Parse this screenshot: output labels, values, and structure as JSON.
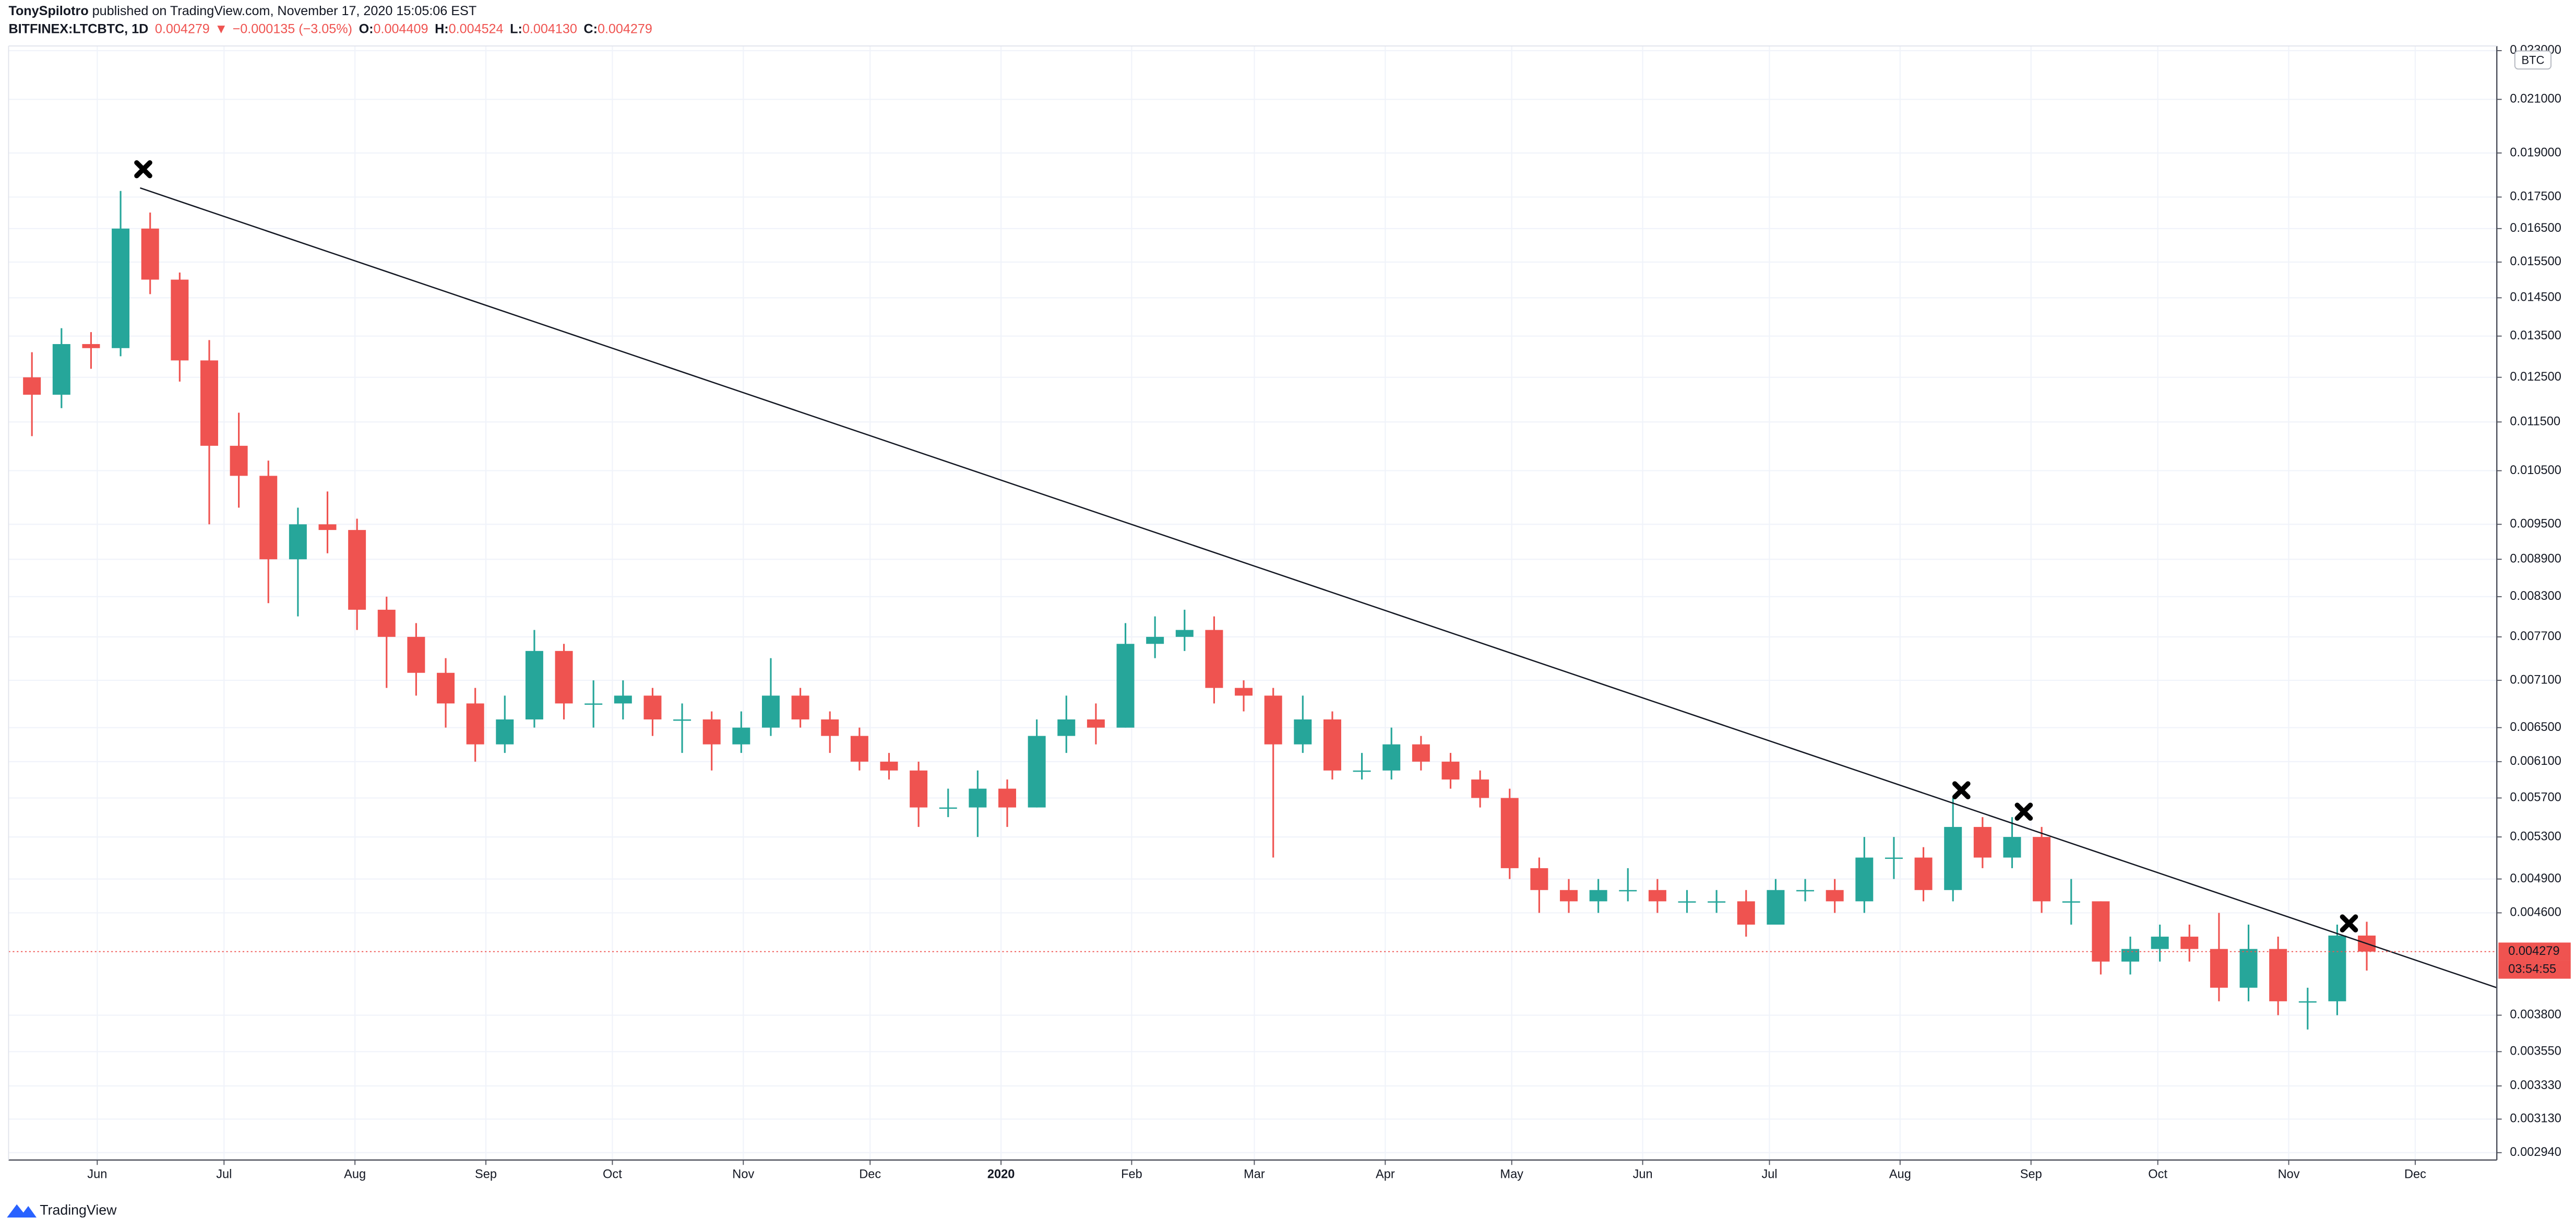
{
  "header": {
    "author": "TonySpilotro",
    "published": " published on TradingView.com, November 17, 2020 15:05:06 EST",
    "symbol": "BITFINEX:LTCBTC, 1D",
    "price": "0.004279",
    "arrow": "▼",
    "change": "−0.000135 (−3.05%)",
    "ohlc": [
      {
        "label": "O:",
        "value": "0.004409"
      },
      {
        "label": "H:",
        "value": "0.004524"
      },
      {
        "label": "L:",
        "value": "0.004130"
      },
      {
        "label": "C:",
        "value": "0.004279"
      }
    ]
  },
  "footer": "TradingView",
  "chart_data": {
    "type": "candlestick",
    "log_scale": true,
    "grid": true,
    "currency": "BTC",
    "countdown": "03:54:55",
    "up_color": "#26a69a",
    "down_color": "#ef5350",
    "categories": [
      null,
      null,
      null,
      null,
      null,
      null,
      null,
      null,
      null,
      null,
      null,
      null,
      null,
      null,
      null,
      null,
      null,
      null,
      null,
      null,
      null,
      null,
      null,
      null,
      null,
      null,
      null,
      null,
      null,
      null,
      null,
      null,
      null,
      null,
      null,
      null,
      null,
      null,
      null,
      null,
      null,
      null,
      null,
      null,
      null,
      null,
      null,
      null,
      null,
      null,
      null,
      null,
      null,
      null,
      null,
      null,
      null,
      null,
      null,
      null,
      null,
      null,
      null,
      null,
      null,
      null,
      null,
      null,
      null,
      null,
      null,
      null,
      null,
      null,
      null,
      null,
      null,
      null,
      null,
      null
    ],
    "open": [
      0.0125,
      0.0121,
      0.0133,
      0.0132,
      0.0165,
      0.015,
      0.0129,
      0.011,
      0.0104,
      0.0089,
      0.0095,
      0.0094,
      0.0081,
      0.0077,
      0.0072,
      0.0068,
      0.0063,
      0.0066,
      0.0075,
      0.0068,
      0.0068,
      0.0069,
      0.0066,
      0.0066,
      0.0063,
      0.0065,
      0.0069,
      0.0066,
      0.0064,
      0.0061,
      0.006,
      0.0056,
      0.0056,
      0.0058,
      0.0056,
      0.0064,
      0.0066,
      0.0065,
      0.0076,
      0.0077,
      0.0078,
      0.007,
      0.0069,
      0.0063,
      0.0066,
      0.006,
      0.006,
      0.0063,
      0.0061,
      0.0059,
      0.0057,
      0.005,
      0.0048,
      0.0047,
      0.0048,
      0.0048,
      0.0047,
      0.0047,
      0.0047,
      0.0045,
      0.0048,
      0.0048,
      0.0047,
      0.0051,
      0.0051,
      0.0048,
      0.0054,
      0.0051,
      0.0053,
      0.0047,
      0.0047,
      0.0042,
      0.0043,
      0.0044,
      0.0043,
      0.004,
      0.0043,
      0.0039,
      0.0039,
      0.004409
    ],
    "high": [
      0.0131,
      0.0137,
      0.0136,
      0.0177,
      0.017,
      0.0152,
      0.0134,
      0.0117,
      0.0107,
      0.0098,
      0.0101,
      0.0096,
      0.0083,
      0.0079,
      0.0074,
      0.007,
      0.0069,
      0.0078,
      0.0076,
      0.0071,
      0.0071,
      0.007,
      0.0068,
      0.0067,
      0.0067,
      0.0074,
      0.007,
      0.0067,
      0.0065,
      0.0062,
      0.0061,
      0.0058,
      0.006,
      0.0059,
      0.0066,
      0.0069,
      0.0068,
      0.0079,
      0.008,
      0.0081,
      0.008,
      0.0071,
      0.007,
      0.0069,
      0.0067,
      0.0062,
      0.0065,
      0.0064,
      0.0062,
      0.006,
      0.0058,
      0.0051,
      0.0049,
      0.0049,
      0.005,
      0.0049,
      0.0048,
      0.0048,
      0.0048,
      0.0049,
      0.0049,
      0.0049,
      0.0053,
      0.0053,
      0.0052,
      0.0057,
      0.0055,
      0.0055,
      0.0054,
      0.0049,
      0.0047,
      0.0044,
      0.0045,
      0.0045,
      0.0046,
      0.0045,
      0.0044,
      0.004,
      0.0045,
      0.004524
    ],
    "low": [
      0.0112,
      0.0118,
      0.0127,
      0.013,
      0.0146,
      0.0124,
      0.0095,
      0.0098,
      0.0082,
      0.008,
      0.009,
      0.0078,
      0.007,
      0.0069,
      0.0065,
      0.0061,
      0.0062,
      0.0065,
      0.0066,
      0.0065,
      0.0066,
      0.0064,
      0.0062,
      0.006,
      0.0062,
      0.0064,
      0.0065,
      0.0062,
      0.006,
      0.0059,
      0.0054,
      0.0055,
      0.0053,
      0.0054,
      0.0056,
      0.0062,
      0.0063,
      0.0065,
      0.0074,
      0.0075,
      0.0068,
      0.0067,
      0.0051,
      0.0062,
      0.0059,
      0.0059,
      0.0059,
      0.006,
      0.0058,
      0.0056,
      0.0049,
      0.0046,
      0.0046,
      0.0046,
      0.0047,
      0.0046,
      0.0046,
      0.0046,
      0.0044,
      0.0045,
      0.0047,
      0.0046,
      0.0046,
      0.0049,
      0.0047,
      0.0047,
      0.005,
      0.005,
      0.0046,
      0.0045,
      0.0041,
      0.0041,
      0.0042,
      0.0042,
      0.0039,
      0.0039,
      0.0038,
      0.0037,
      0.0038,
      0.00413
    ],
    "close": [
      0.0121,
      0.0133,
      0.0132,
      0.0165,
      0.015,
      0.0129,
      0.011,
      0.0104,
      0.0089,
      0.0095,
      0.0094,
      0.0081,
      0.0077,
      0.0072,
      0.0068,
      0.0063,
      0.0066,
      0.0075,
      0.0068,
      0.0068,
      0.0069,
      0.0066,
      0.0066,
      0.0063,
      0.0065,
      0.0069,
      0.0066,
      0.0064,
      0.0061,
      0.006,
      0.0056,
      0.0056,
      0.0058,
      0.0056,
      0.0064,
      0.0066,
      0.0065,
      0.0076,
      0.0077,
      0.0078,
      0.007,
      0.0069,
      0.0063,
      0.0066,
      0.006,
      0.006,
      0.0063,
      0.0061,
      0.0059,
      0.0057,
      0.005,
      0.0048,
      0.0047,
      0.0048,
      0.0048,
      0.0047,
      0.0047,
      0.0047,
      0.0045,
      0.0048,
      0.0048,
      0.0047,
      0.0051,
      0.0051,
      0.0048,
      0.0054,
      0.0051,
      0.0053,
      0.0047,
      0.0047,
      0.0042,
      0.0043,
      0.0044,
      0.0043,
      0.004,
      0.0043,
      0.0039,
      0.0039,
      0.004409,
      0.004279
    ],
    "trendline": {
      "x": [
        3.66,
        83.4
      ],
      "values": [
        0.0178,
        0.004
      ]
    },
    "xlim": [
      -0.79,
      83.4
    ],
    "xticks": [
      {
        "value": 2.21,
        "label": "Jun"
      },
      {
        "value": 6.5,
        "label": "Jul"
      },
      {
        "value": 10.93,
        "label": "Aug"
      },
      {
        "value": 15.36,
        "label": "Sep"
      },
      {
        "value": 19.64,
        "label": "Oct"
      },
      {
        "value": 24.07,
        "label": "Nov"
      },
      {
        "value": 28.36,
        "label": "Dec"
      },
      {
        "value": 32.79,
        "label": "2020"
      },
      {
        "value": 37.21,
        "label": "Feb"
      },
      {
        "value": 41.36,
        "label": "Mar"
      },
      {
        "value": 45.79,
        "label": "Apr"
      },
      {
        "value": 50.07,
        "label": "May"
      },
      {
        "value": 54.5,
        "label": "Jun"
      },
      {
        "value": 58.79,
        "label": "Jul"
      },
      {
        "value": 63.21,
        "label": "Aug"
      },
      {
        "value": 67.64,
        "label": "Sep"
      },
      {
        "value": 71.93,
        "label": "Oct"
      },
      {
        "value": 76.36,
        "label": "Nov"
      },
      {
        "value": 80.64,
        "label": "Dec"
      }
    ],
    "ylim": [
      0.0029,
      0.0232
    ],
    "yticks": [
      {
        "value": 0.023,
        "label": "0.023000"
      },
      {
        "value": 0.021,
        "label": "0.021000"
      },
      {
        "value": 0.019,
        "label": "0.019000"
      },
      {
        "value": 0.0175,
        "label": "0.017500"
      },
      {
        "value": 0.0165,
        "label": "0.016500"
      },
      {
        "value": 0.0155,
        "label": "0.015500"
      },
      {
        "value": 0.0145,
        "label": "0.014500"
      },
      {
        "value": 0.0135,
        "label": "0.013500"
      },
      {
        "value": 0.0125,
        "label": "0.012500"
      },
      {
        "value": 0.0115,
        "label": "0.011500"
      },
      {
        "value": 0.0105,
        "label": "0.010500"
      },
      {
        "value": 0.0095,
        "label": "0.009500"
      },
      {
        "value": 0.0089,
        "label": "0.008900"
      },
      {
        "value": 0.0083,
        "label": "0.008300"
      },
      {
        "value": 0.0077,
        "label": "0.007700"
      },
      {
        "value": 0.0071,
        "label": "0.007100"
      },
      {
        "value": 0.0065,
        "label": "0.006500"
      },
      {
        "value": 0.0061,
        "label": "0.006100"
      },
      {
        "value": 0.0057,
        "label": "0.005700"
      },
      {
        "value": 0.0053,
        "label": "0.005300"
      },
      {
        "value": 0.0049,
        "label": "0.004900"
      },
      {
        "value": 0.0046,
        "label": "0.004600"
      },
      {
        "value": 0.0038,
        "label": "0.003800"
      },
      {
        "value": 0.00355,
        "label": "0.003550"
      },
      {
        "value": 0.00333,
        "label": "0.003330"
      },
      {
        "value": 0.00313,
        "label": "0.003130"
      },
      {
        "value": 0.00294,
        "label": "0.002940"
      }
    ]
  }
}
